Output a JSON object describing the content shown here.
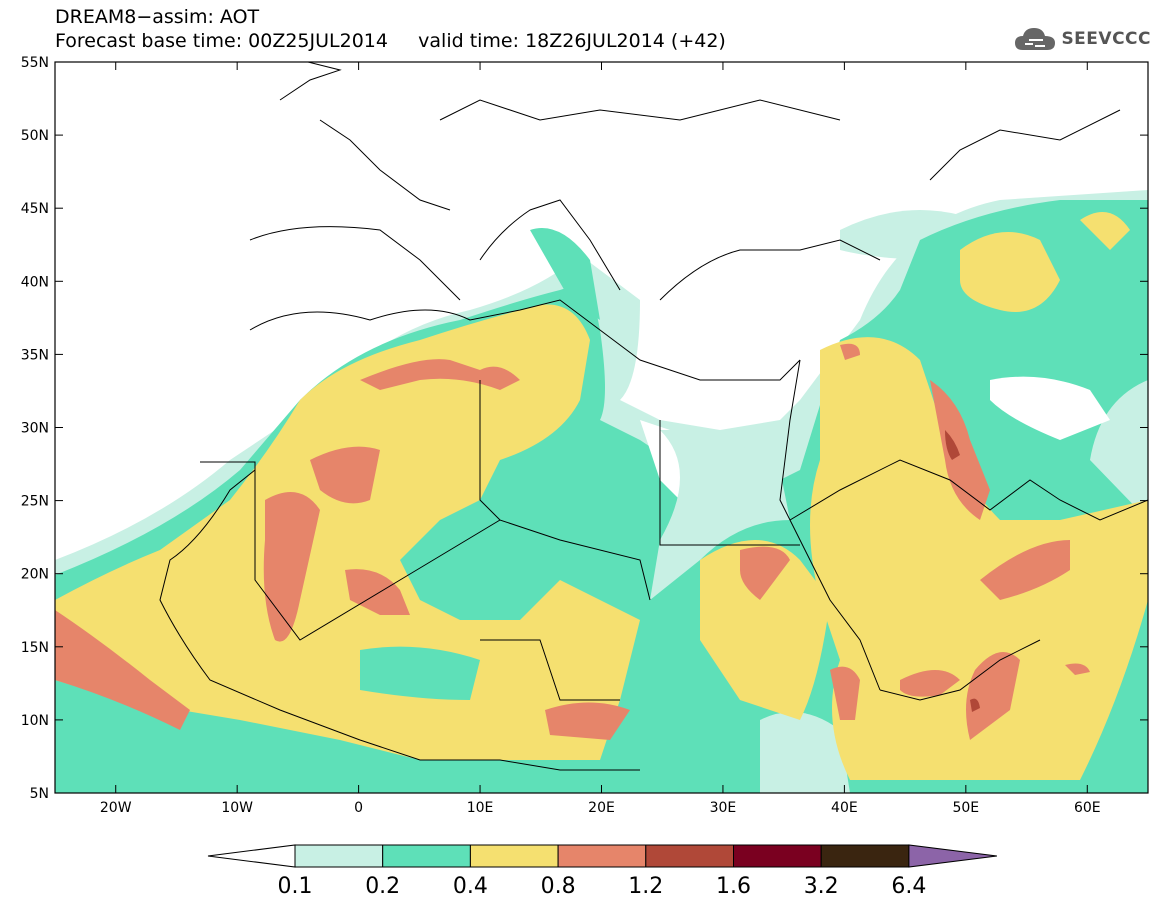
{
  "title": {
    "line1": "DREAM8−assim: AOT",
    "line2": "Forecast base time: 00Z25JUL2014     valid time: 18Z26JUL2014 (+42)"
  },
  "logo": {
    "text": "SEEVCCC",
    "icon": "cloud-icon"
  },
  "map": {
    "lat_labels": [
      "55N",
      "50N",
      "45N",
      "40N",
      "35N",
      "30N",
      "25N",
      "20N",
      "15N",
      "10N",
      "5N"
    ],
    "lon_labels": [
      "20W",
      "10W",
      "0",
      "10E",
      "20E",
      "30E",
      "40E",
      "50E",
      "60E"
    ],
    "extent": {
      "lon": [
        -25,
        65
      ],
      "lat": [
        5,
        55
      ]
    }
  },
  "colorbar": {
    "labels": [
      "0.1",
      "0.2",
      "0.4",
      "0.8",
      "1.2",
      "1.6",
      "3.2",
      "6.4"
    ],
    "colors": [
      "#ffffff",
      "#c8f0e4",
      "#5ee0b8",
      "#f5e070",
      "#e6856a",
      "#b04838",
      "#7a0020",
      "#3a2510",
      "#8c64a8"
    ]
  }
}
